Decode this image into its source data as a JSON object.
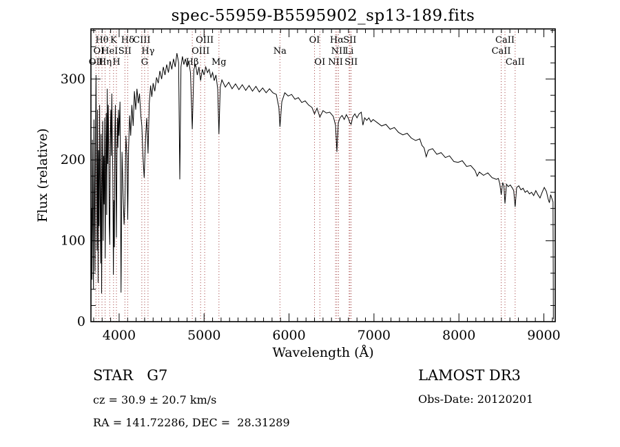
{
  "chart_data": {
    "type": "line",
    "title": "spec-55959-B5595902_sp13-189.fits",
    "xlabel": "Wavelength (Å)",
    "ylabel": "Flux (relative)",
    "xlim": [
      3668,
      9134
    ],
    "ylim": [
      0,
      362
    ],
    "xticks_major": [
      4000,
      5000,
      6000,
      7000,
      8000,
      9000
    ],
    "xtick_minor_step": 100,
    "yticks_major": [
      0,
      100,
      200,
      300
    ],
    "ytick_minor_step": 20,
    "grid": false,
    "legend": "none",
    "line_color": "#000000",
    "frame_color": "#000000",
    "marker_line_color": "#a03b3b",
    "spectrum": [
      [
        3668,
        2
      ],
      [
        3674,
        140
      ],
      [
        3680,
        52
      ],
      [
        3686,
        225
      ],
      [
        3692,
        118
      ],
      [
        3698,
        40
      ],
      [
        3704,
        250
      ],
      [
        3710,
        150
      ],
      [
        3716,
        62
      ],
      [
        3722,
        228
      ],
      [
        3728,
        305
      ],
      [
        3734,
        195
      ],
      [
        3740,
        88
      ],
      [
        3746,
        262
      ],
      [
        3752,
        48
      ],
      [
        3758,
        212
      ],
      [
        3764,
        118
      ],
      [
        3770,
        268
      ],
      [
        3776,
        158
      ],
      [
        3782,
        72
      ],
      [
        3788,
        232
      ],
      [
        3794,
        35
      ],
      [
        3800,
        165
      ],
      [
        3806,
        248
      ],
      [
        3812,
        100
      ],
      [
        3818,
        205
      ],
      [
        3824,
        145
      ],
      [
        3830,
        252
      ],
      [
        3836,
        78
      ],
      [
        3842,
        188
      ],
      [
        3848,
        258
      ],
      [
        3854,
        132
      ],
      [
        3860,
        288
      ],
      [
        3866,
        195
      ],
      [
        3872,
        268
      ],
      [
        3878,
        205
      ],
      [
        3884,
        122
      ],
      [
        3890,
        95
      ],
      [
        3896,
        232
      ],
      [
        3902,
        262
      ],
      [
        3908,
        205
      ],
      [
        3914,
        282
      ],
      [
        3920,
        222
      ],
      [
        3926,
        180
      ],
      [
        3932,
        58
      ],
      [
        3938,
        150
      ],
      [
        3944,
        92
      ],
      [
        3950,
        238
      ],
      [
        3956,
        268
      ],
      [
        3962,
        175
      ],
      [
        3968,
        104
      ],
      [
        3974,
        198
      ],
      [
        3980,
        252
      ],
      [
        3986,
        215
      ],
      [
        3992,
        262
      ],
      [
        3998,
        230
      ],
      [
        4010,
        272
      ],
      [
        4022,
        36
      ],
      [
        4034,
        210
      ],
      [
        4046,
        160
      ],
      [
        4058,
        120
      ],
      [
        4068,
        145
      ],
      [
        4080,
        230
      ],
      [
        4092,
        205
      ],
      [
        4101,
        126
      ],
      [
        4112,
        215
      ],
      [
        4124,
        255
      ],
      [
        4136,
        230
      ],
      [
        4150,
        268
      ],
      [
        4165,
        242
      ],
      [
        4180,
        285
      ],
      [
        4195,
        262
      ],
      [
        4210,
        288
      ],
      [
        4225,
        270
      ],
      [
        4240,
        282
      ],
      [
        4255,
        255
      ],
      [
        4267,
        242
      ],
      [
        4280,
        205
      ],
      [
        4295,
        178
      ],
      [
        4310,
        225
      ],
      [
        4325,
        252
      ],
      [
        4340,
        208
      ],
      [
        4355,
        270
      ],
      [
        4370,
        292
      ],
      [
        4385,
        278
      ],
      [
        4400,
        295
      ],
      [
        4420,
        285
      ],
      [
        4440,
        302
      ],
      [
        4460,
        295
      ],
      [
        4480,
        310
      ],
      [
        4500,
        300
      ],
      [
        4520,
        315
      ],
      [
        4540,
        305
      ],
      [
        4560,
        318
      ],
      [
        4580,
        308
      ],
      [
        4600,
        322
      ],
      [
        4620,
        312
      ],
      [
        4640,
        325
      ],
      [
        4660,
        315
      ],
      [
        4680,
        332
      ],
      [
        4700,
        320
      ],
      [
        4714,
        176
      ],
      [
        4728,
        315
      ],
      [
        4745,
        328
      ],
      [
        4762,
        318
      ],
      [
        4780,
        325
      ],
      [
        4800,
        315
      ],
      [
        4820,
        322
      ],
      [
        4840,
        308
      ],
      [
        4861,
        238
      ],
      [
        4880,
        312
      ],
      [
        4900,
        318
      ],
      [
        4920,
        305
      ],
      [
        4940,
        315
      ],
      [
        4959,
        298
      ],
      [
        4980,
        312
      ],
      [
        5000,
        305
      ],
      [
        5020,
        315
      ],
      [
        5040,
        308
      ],
      [
        5060,
        312
      ],
      [
        5080,
        302
      ],
      [
        5100,
        308
      ],
      [
        5120,
        298
      ],
      [
        5140,
        305
      ],
      [
        5160,
        288
      ],
      [
        5175,
        232
      ],
      [
        5190,
        290
      ],
      [
        5210,
        299
      ],
      [
        5250,
        290
      ],
      [
        5290,
        296
      ],
      [
        5330,
        288
      ],
      [
        5370,
        294
      ],
      [
        5410,
        287
      ],
      [
        5450,
        293
      ],
      [
        5490,
        286
      ],
      [
        5530,
        292
      ],
      [
        5570,
        285
      ],
      [
        5610,
        291
      ],
      [
        5650,
        284
      ],
      [
        5690,
        289
      ],
      [
        5730,
        283
      ],
      [
        5770,
        288
      ],
      [
        5810,
        283
      ],
      [
        5850,
        281
      ],
      [
        5880,
        265
      ],
      [
        5893,
        241
      ],
      [
        5915,
        272
      ],
      [
        5950,
        283
      ],
      [
        5990,
        279
      ],
      [
        6030,
        281
      ],
      [
        6070,
        275
      ],
      [
        6110,
        277
      ],
      [
        6150,
        271
      ],
      [
        6190,
        273
      ],
      [
        6230,
        268
      ],
      [
        6270,
        265
      ],
      [
        6300,
        257
      ],
      [
        6330,
        264
      ],
      [
        6363,
        253
      ],
      [
        6400,
        261
      ],
      [
        6440,
        258
      ],
      [
        6480,
        259
      ],
      [
        6520,
        254
      ],
      [
        6548,
        243
      ],
      [
        6563,
        210
      ],
      [
        6580,
        246
      ],
      [
        6600,
        252
      ],
      [
        6625,
        255
      ],
      [
        6650,
        250
      ],
      [
        6675,
        256
      ],
      [
        6700,
        251
      ],
      [
        6716,
        246
      ],
      [
        6731,
        244
      ],
      [
        6750,
        253
      ],
      [
        6775,
        257
      ],
      [
        6800,
        252
      ],
      [
        6825,
        257
      ],
      [
        6850,
        259
      ],
      [
        6870,
        243
      ],
      [
        6890,
        252
      ],
      [
        6915,
        249
      ],
      [
        6940,
        252
      ],
      [
        6965,
        247
      ],
      [
        6990,
        250
      ],
      [
        7040,
        246
      ],
      [
        7090,
        242
      ],
      [
        7140,
        244
      ],
      [
        7190,
        238
      ],
      [
        7240,
        240
      ],
      [
        7290,
        234
      ],
      [
        7340,
        231
      ],
      [
        7390,
        233
      ],
      [
        7440,
        227
      ],
      [
        7490,
        224
      ],
      [
        7540,
        226
      ],
      [
        7565,
        218
      ],
      [
        7590,
        215
      ],
      [
        7615,
        204
      ],
      [
        7640,
        212
      ],
      [
        7690,
        214
      ],
      [
        7740,
        207
      ],
      [
        7790,
        209
      ],
      [
        7840,
        203
      ],
      [
        7890,
        205
      ],
      [
        7940,
        198
      ],
      [
        7990,
        197
      ],
      [
        8040,
        199
      ],
      [
        8090,
        192
      ],
      [
        8140,
        193
      ],
      [
        8190,
        187
      ],
      [
        8215,
        180
      ],
      [
        8240,
        185
      ],
      [
        8290,
        181
      ],
      [
        8340,
        184
      ],
      [
        8390,
        178
      ],
      [
        8440,
        176
      ],
      [
        8465,
        177
      ],
      [
        8482,
        170
      ],
      [
        8498,
        157
      ],
      [
        8515,
        172
      ],
      [
        8530,
        168
      ],
      [
        8542,
        146
      ],
      [
        8560,
        170
      ],
      [
        8580,
        167
      ],
      [
        8605,
        169
      ],
      [
        8630,
        165
      ],
      [
        8645,
        162
      ],
      [
        8662,
        142
      ],
      [
        8680,
        166
      ],
      [
        8705,
        168
      ],
      [
        8730,
        163
      ],
      [
        8755,
        165
      ],
      [
        8780,
        160
      ],
      [
        8805,
        162
      ],
      [
        8830,
        158
      ],
      [
        8855,
        160
      ],
      [
        8880,
        156
      ],
      [
        8905,
        162
      ],
      [
        8930,
        157
      ],
      [
        8955,
        153
      ],
      [
        8980,
        160
      ],
      [
        9005,
        166
      ],
      [
        9030,
        161
      ],
      [
        9050,
        152
      ],
      [
        9065,
        147
      ],
      [
        9080,
        157
      ],
      [
        9095,
        152
      ],
      [
        9108,
        148
      ],
      [
        9112,
        3
      ]
    ],
    "spectral_lines": [
      {
        "wavelength": 3727,
        "label": "OII",
        "row": 3
      },
      {
        "wavelength": 3760,
        "label": "OI",
        "row": 2
      },
      {
        "wavelength": 3798,
        "label": "Hθ",
        "row": 1
      },
      {
        "wavelength": 3835,
        "label": "Hη",
        "row": 3
      },
      {
        "wavelength": 3889,
        "label": "HeI",
        "row": 2
      },
      {
        "wavelength": 3934,
        "label": "K",
        "row": 1
      },
      {
        "wavelength": 3968,
        "label": "H",
        "row": 3
      },
      {
        "wavelength": 4068,
        "label": "SII",
        "row": 2
      },
      {
        "wavelength": 4101,
        "label": "Hδ",
        "row": 1
      },
      {
        "wavelength": 4267,
        "label": "CIII",
        "row": 1
      },
      {
        "wavelength": 4300,
        "label": "G",
        "row": 3
      },
      {
        "wavelength": 4340,
        "label": "Hγ",
        "row": 2
      },
      {
        "wavelength": 4861,
        "label": "Hβ",
        "row": 3
      },
      {
        "wavelength": 4959,
        "label": "OIII",
        "row": 2
      },
      {
        "wavelength": 5007,
        "label": "OIII",
        "row": 1
      },
      {
        "wavelength": 5175,
        "label": "Mg",
        "row": 3
      },
      {
        "wavelength": 5893,
        "label": "Na",
        "row": 2
      },
      {
        "wavelength": 6300,
        "label": "OI",
        "row": 1
      },
      {
        "wavelength": 6363,
        "label": "OI",
        "row": 3
      },
      {
        "wavelength": 6548,
        "label": "NII",
        "row": 3
      },
      {
        "wavelength": 6563,
        "label": "Hα",
        "row": 1
      },
      {
        "wavelength": 6583,
        "label": "NII",
        "row": 2
      },
      {
        "wavelength": 6708,
        "label": "Li",
        "row": 2
      },
      {
        "wavelength": 6716,
        "label": "SII",
        "row": 1
      },
      {
        "wavelength": 6731,
        "label": "SII",
        "row": 3
      },
      {
        "wavelength": 8498,
        "label": "CaII",
        "row": 2
      },
      {
        "wavelength": 8542,
        "label": "CaII",
        "row": 1
      },
      {
        "wavelength": 8662,
        "label": "CaII",
        "row": 3
      }
    ]
  },
  "footer": {
    "left": {
      "class_line": "STAR   G7",
      "cz_line": "cz = 30.9 ± 20.7 km/s",
      "radec_line": "RA = 141.72286, DEC =  28.31289"
    },
    "right": {
      "survey_line": "LAMOST DR3",
      "obsdate_line": "Obs-Date: 20120201"
    }
  }
}
